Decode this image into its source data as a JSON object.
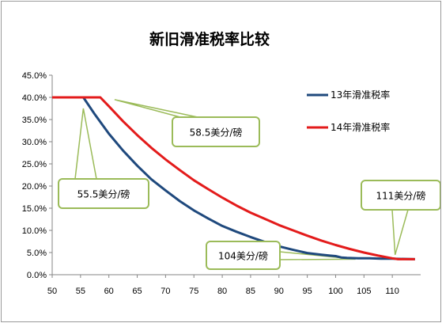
{
  "chart_data": {
    "type": "line",
    "title": "新旧滑准税率比较",
    "xlabel": "",
    "ylabel": "",
    "xlim": [
      50,
      115
    ],
    "ylim": [
      0,
      0.45
    ],
    "x_ticks": [
      "50",
      "55",
      "60",
      "65",
      "70",
      "75",
      "80",
      "85",
      "90",
      "95",
      "100",
      "105",
      "110"
    ],
    "y_ticks": [
      "0.0%",
      "5.0%",
      "10.0%",
      "15.0%",
      "20.0%",
      "25.0%",
      "30.0%",
      "35.0%",
      "40.0%",
      "45.0%"
    ],
    "grid": false,
    "legend_position": "right",
    "series": [
      {
        "name": "13年滑准税率",
        "color": "#1f497d",
        "x": [
          50,
          55.5,
          57.5,
          60,
          62.5,
          65,
          67.5,
          70,
          72.5,
          75,
          77.5,
          80,
          82.5,
          85,
          87.5,
          90,
          92.5,
          95,
          97.5,
          99,
          100,
          101,
          102,
          104,
          106,
          108,
          110,
          114
        ],
        "y": [
          0.4,
          0.4,
          0.362,
          0.318,
          0.28,
          0.246,
          0.215,
          0.19,
          0.166,
          0.145,
          0.127,
          0.11,
          0.097,
          0.085,
          0.074,
          0.064,
          0.056,
          0.049,
          0.045,
          0.043,
          0.042,
          0.039,
          0.038,
          0.037,
          0.037,
          0.036,
          0.036,
          0.035
        ]
      },
      {
        "name": "14年滑准税率",
        "color": "#e31b1b",
        "x": [
          50,
          58.5,
          60,
          62.5,
          65,
          67.5,
          70,
          72.5,
          75,
          77.5,
          80,
          82.5,
          85,
          87.5,
          90,
          92.5,
          95,
          97.5,
          100,
          102.5,
          105,
          107.5,
          110,
          111,
          114
        ],
        "y": [
          0.4,
          0.4,
          0.38,
          0.346,
          0.315,
          0.286,
          0.26,
          0.236,
          0.213,
          0.193,
          0.174,
          0.156,
          0.14,
          0.126,
          0.112,
          0.1,
          0.088,
          0.077,
          0.067,
          0.058,
          0.05,
          0.043,
          0.037,
          0.035,
          0.035
        ]
      }
    ],
    "annotations": [
      {
        "label": "58.5美分/磅",
        "target_x": 61,
        "target_y": 0.395
      },
      {
        "label": "55.5美分/磅",
        "target_x": 55.5,
        "target_y": 0.375
      },
      {
        "label": "104美分/磅",
        "target_x": 103.5,
        "target_y": 0.035
      },
      {
        "label": "111美分/磅",
        "target_x": 110.5,
        "target_y": 0.045
      }
    ]
  }
}
